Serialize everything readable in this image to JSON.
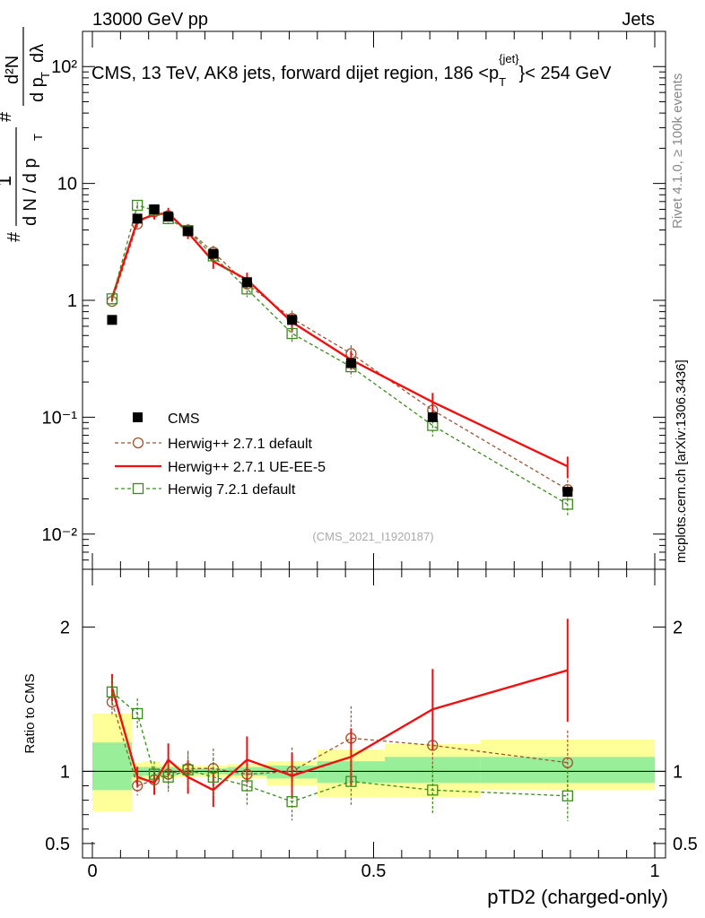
{
  "header": {
    "left": "13000 GeV pp",
    "right": "Jets"
  },
  "title_parts": {
    "pre": "CMS, 13 TeV, AK8 jets, forward dijet region, 186 <p",
    "sub": "T",
    "sup": "{jet}",
    "post": "}< 254 GeV"
  },
  "side_labels": {
    "rivet": "Rivet 4.1.0, ≥ 100k events",
    "mcplots": "mcplots.cern.ch [arXiv:1306.3436]"
  },
  "analysis_id": "(CMS_2021_I1920187)",
  "ylabel_main_parts": {
    "hash1": "#",
    "one": "1",
    "denom": "d N / d p",
    "denom_sub": "T",
    "hash2": "#",
    "num2": "d²N",
    "den2": "d p",
    "den2_sub": "T",
    "dl": "dλ"
  },
  "ylabel_ratio": "Ratio to CMS",
  "xlabel": "pTD2 (charged-only)",
  "colors": {
    "cms": "#000000",
    "h271def": "#a0522d",
    "h271ue": "#ee1111",
    "h721": "#3a8c1a",
    "band_inner": "#99ee99",
    "band_outer": "#ffff99"
  },
  "chart_data": [
    {
      "type": "line",
      "panel": "main",
      "yscale": "log",
      "xlim": [
        0,
        1
      ],
      "ylim": [
        0.005,
        200
      ],
      "yticks": [
        0.01,
        0.1,
        1,
        10,
        100
      ],
      "yticklabels": [
        "10⁻²",
        "10⁻¹",
        "1",
        "10",
        "10²"
      ],
      "series": [
        {
          "name": "CMS",
          "style": "marker-square-filled",
          "x": [
            0.035,
            0.08,
            0.11,
            0.135,
            0.17,
            0.215,
            0.275,
            0.355,
            0.46,
            0.605,
            0.845
          ],
          "y": [
            0.68,
            5.0,
            6.0,
            5.2,
            3.9,
            2.5,
            1.43,
            0.68,
            0.29,
            0.1,
            0.023
          ]
        },
        {
          "name": "Herwig++ 2.7.1 default",
          "style": "dashed-circle",
          "x": [
            0.035,
            0.08,
            0.11,
            0.135,
            0.17,
            0.215,
            0.275,
            0.355,
            0.46,
            0.605,
            0.845
          ],
          "y": [
            0.98,
            4.5,
            5.7,
            5.3,
            4.0,
            2.58,
            1.38,
            0.7,
            0.35,
            0.115,
            0.024
          ]
        },
        {
          "name": "Herwig++ 2.7.1 UE-EE-5",
          "style": "solid",
          "x": [
            0.035,
            0.08,
            0.11,
            0.135,
            0.17,
            0.215,
            0.275,
            0.355,
            0.46,
            0.605,
            0.845
          ],
          "y": [
            1.05,
            4.8,
            5.4,
            5.6,
            3.8,
            2.15,
            1.5,
            0.65,
            0.31,
            0.135,
            0.038
          ]
        },
        {
          "name": "Herwig 7.2.1 default",
          "style": "dashed-square",
          "x": [
            0.035,
            0.08,
            0.11,
            0.135,
            0.17,
            0.215,
            0.275,
            0.355,
            0.46,
            0.605,
            0.845
          ],
          "y": [
            1.03,
            6.5,
            5.9,
            5.0,
            3.95,
            2.4,
            1.25,
            0.52,
            0.27,
            0.085,
            0.018
          ]
        }
      ]
    },
    {
      "type": "line",
      "panel": "ratio",
      "xlim": [
        0,
        1
      ],
      "ylim": [
        0.4,
        2.4
      ],
      "yticks": [
        0.5,
        1,
        2
      ],
      "yticklabels": [
        "0.5",
        "1",
        "2"
      ],
      "xticks": [
        0,
        0.5,
        1
      ],
      "xticklabels": [
        "0",
        "0.5",
        "1"
      ],
      "bands": {
        "edges": [
          0,
          0.07,
          0.09,
          0.12,
          0.15,
          0.19,
          0.24,
          0.31,
          0.4,
          0.52,
          0.69,
          1.0
        ],
        "outer_lo": [
          0.72,
          0.93,
          0.95,
          0.95,
          0.96,
          0.96,
          0.95,
          0.9,
          0.82,
          0.82,
          0.87
        ],
        "outer_hi": [
          1.4,
          1.06,
          1.07,
          1.05,
          1.04,
          1.04,
          1.05,
          1.07,
          1.15,
          1.19,
          1.22
        ],
        "inner_lo": [
          0.87,
          0.96,
          0.97,
          0.97,
          0.98,
          0.98,
          0.97,
          0.95,
          0.92,
          0.92,
          0.92
        ],
        "inner_hi": [
          1.2,
          1.03,
          1.03,
          1.03,
          1.02,
          1.02,
          1.03,
          1.04,
          1.07,
          1.1,
          1.1
        ]
      },
      "series": [
        {
          "name": "Herwig++ 2.7.1 default",
          "style": "dashed-circle",
          "x": [
            0.035,
            0.08,
            0.11,
            0.135,
            0.17,
            0.215,
            0.275,
            0.355,
            0.46,
            0.605,
            0.845
          ],
          "y": [
            1.48,
            0.9,
            0.94,
            0.98,
            1.02,
            1.02,
            0.98,
            1.0,
            1.23,
            1.18,
            1.06
          ]
        },
        {
          "name": "Herwig++ 2.7.1 UE-EE-5",
          "style": "solid",
          "x": [
            0.035,
            0.08,
            0.11,
            0.135,
            0.17,
            0.215,
            0.275,
            0.355,
            0.46,
            0.605,
            0.845
          ],
          "y": [
            1.58,
            0.96,
            0.92,
            1.08,
            0.96,
            0.87,
            1.08,
            0.97,
            1.1,
            1.43,
            1.7
          ]
        },
        {
          "name": "Herwig 7.2.1 default",
          "style": "dashed-square",
          "x": [
            0.035,
            0.08,
            0.11,
            0.135,
            0.17,
            0.215,
            0.275,
            0.355,
            0.46,
            0.605,
            0.845
          ],
          "y": [
            1.55,
            1.4,
            0.98,
            0.96,
            1.01,
            0.96,
            0.9,
            0.79,
            0.93,
            0.87,
            0.83
          ]
        }
      ]
    }
  ]
}
